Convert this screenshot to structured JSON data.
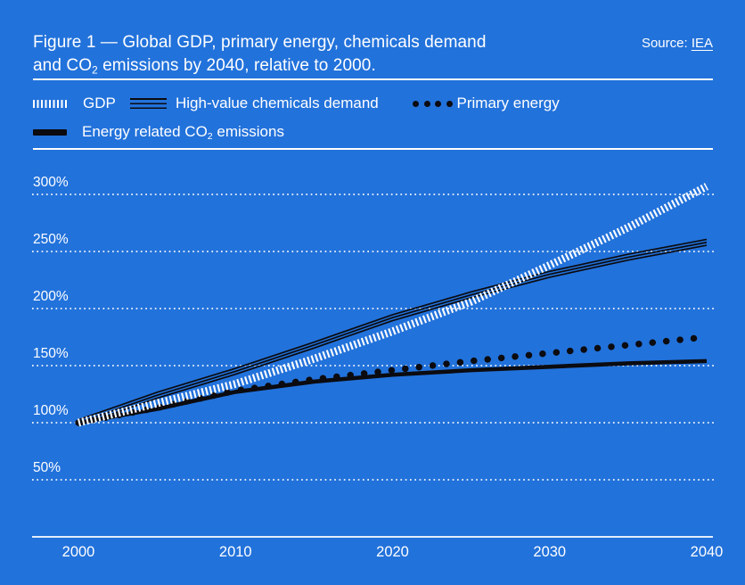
{
  "colors": {
    "background": "#2272DB",
    "line_dark": "#0B0B10",
    "text": "#FFFFFF",
    "grid": "#FFFFFF"
  },
  "header": {
    "title_line1": "Figure 1 — Global GDP, primary energy, chemicals demand",
    "title_line2_pre": "and CO",
    "title_line2_sub": "2",
    "title_line2_post": " emissions by 2040, relative to 2000.",
    "source_prefix": "Source: ",
    "source_link_label": "IEA"
  },
  "legend": {
    "gdp_label": "GDP",
    "chemicals_label": "High-value chemicals demand",
    "energy_label": "Primary energy",
    "co2_label_pre": "Energy related CO",
    "co2_label_sub": "2",
    "co2_label_post": " emissions"
  },
  "chart_data": {
    "type": "line",
    "title": "Global GDP, primary energy, chemicals demand and CO2 emissions by 2040, relative to 2000",
    "source": "IEA",
    "x": [
      2000,
      2005,
      2010,
      2015,
      2020,
      2025,
      2030,
      2035,
      2040
    ],
    "xticks": [
      2000,
      2010,
      2020,
      2030,
      2040
    ],
    "xtick_labels": [
      "2000",
      "2010",
      "2020",
      "2030",
      "2040"
    ],
    "ytick_values": [
      300,
      250,
      200,
      150,
      100,
      50
    ],
    "ytick_labels": [
      "300%",
      "250%",
      "200%",
      "150%",
      "100%",
      "50%"
    ],
    "ylim": [
      50,
      300
    ],
    "unit": "percent relative to 2000",
    "grid": "dotted-horizontal",
    "legend_position": "top",
    "series": [
      {
        "name": "GDP",
        "style": "white hatched band",
        "values": [
          100,
          117,
          134,
          156,
          180,
          206,
          238,
          271,
          307
        ]
      },
      {
        "name": "High-value chemicals demand",
        "style": "triple thin dark line",
        "values": [
          100,
          124,
          145,
          168,
          192,
          212,
          230,
          245,
          258
        ]
      },
      {
        "name": "Primary energy",
        "style": "dark dotted",
        "values": [
          100,
          113,
          128,
          138,
          146,
          154,
          161,
          168,
          175
        ]
      },
      {
        "name": "Energy related CO2 emissions",
        "style": "dark solid",
        "values": [
          100,
          112,
          127,
          136,
          142,
          146,
          149,
          152,
          154
        ]
      }
    ]
  }
}
